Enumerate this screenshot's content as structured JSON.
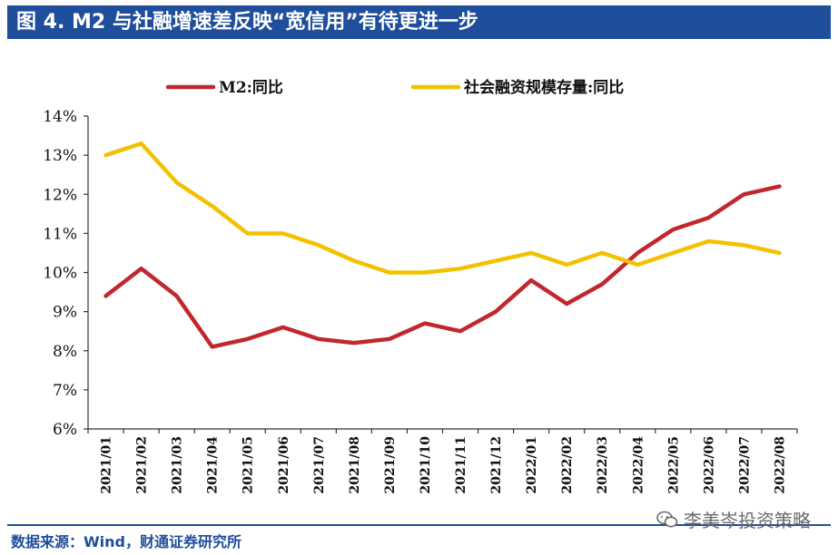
{
  "header": {
    "title": "图 4. M2 与社融增速差反映“宽信用”有待更进一步"
  },
  "footer": {
    "source": "数据来源：Wind，财通证券研究所",
    "watermark": "李美岑投资策略"
  },
  "chart_data": {
    "type": "line",
    "title": "",
    "xlabel": "",
    "ylabel": "",
    "ylim": [
      6,
      14
    ],
    "yticks": [
      6,
      7,
      8,
      9,
      10,
      11,
      12,
      13,
      14
    ],
    "ytick_labels": [
      "6%",
      "7%",
      "8%",
      "9%",
      "10%",
      "11%",
      "12%",
      "13%",
      "14%"
    ],
    "categories": [
      "2021/01",
      "2021/02",
      "2021/03",
      "2021/04",
      "2021/05",
      "2021/06",
      "2021/07",
      "2021/08",
      "2021/09",
      "2021/10",
      "2021/11",
      "2021/12",
      "2022/01",
      "2022/02",
      "2022/03",
      "2022/04",
      "2022/05",
      "2022/06",
      "2022/07",
      "2022/08"
    ],
    "legend_position": "top",
    "series": [
      {
        "name": "M2:同比",
        "color": "#c0282d",
        "values": [
          9.4,
          10.1,
          9.4,
          8.1,
          8.3,
          8.6,
          8.3,
          8.2,
          8.3,
          8.7,
          8.5,
          9.0,
          9.8,
          9.2,
          9.7,
          10.5,
          11.1,
          11.4,
          12.0,
          12.2
        ]
      },
      {
        "name": "社会融资规模存量:同比",
        "color": "#f2c200",
        "values": [
          13.0,
          13.3,
          12.3,
          11.7,
          11.0,
          11.0,
          10.7,
          10.3,
          10.0,
          10.0,
          10.1,
          10.3,
          10.5,
          10.2,
          10.5,
          10.2,
          10.5,
          10.8,
          10.7,
          10.5
        ]
      }
    ]
  }
}
